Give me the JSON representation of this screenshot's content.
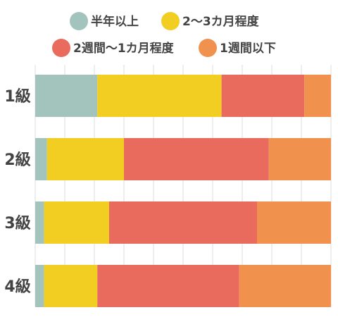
{
  "chart_data": {
    "type": "bar",
    "orientation": "horizontal",
    "stacked": true,
    "normalized_percent": true,
    "categories": [
      "1級",
      "2級",
      "3級",
      "4級"
    ],
    "series": [
      {
        "name": "半年以上",
        "color": "#a3c4bc",
        "values": [
          21,
          4,
          3,
          3
        ]
      },
      {
        "name": "2～3カ月程度",
        "color": "#f2cd22",
        "values": [
          42,
          26,
          22,
          18
        ]
      },
      {
        "name": "2週間～1カ月程度",
        "color": "#e96b5d",
        "values": [
          28,
          49,
          50,
          48
        ]
      },
      {
        "name": "1週間以下",
        "color": "#f0924d",
        "values": [
          9,
          21,
          25,
          31
        ]
      }
    ],
    "xlim": [
      0,
      100
    ],
    "grid": true,
    "legend_position": "top"
  }
}
